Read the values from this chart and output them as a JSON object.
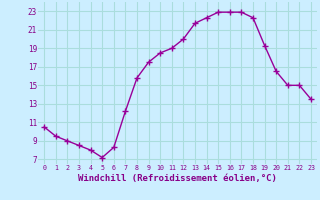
{
  "x": [
    0,
    1,
    2,
    3,
    4,
    5,
    6,
    7,
    8,
    9,
    10,
    11,
    12,
    13,
    14,
    15,
    16,
    17,
    18,
    19,
    20,
    21,
    22,
    23
  ],
  "y": [
    10.5,
    9.5,
    9.0,
    8.5,
    8.0,
    7.2,
    8.3,
    12.2,
    15.8,
    17.5,
    18.5,
    19.0,
    20.0,
    21.7,
    22.3,
    22.9,
    22.9,
    22.9,
    22.3,
    19.3,
    16.5,
    15.0,
    15.0,
    13.5
  ],
  "line_color": "#990099",
  "marker": "+",
  "markersize": 4,
  "linewidth": 1.0,
  "background_color": "#cceeff",
  "grid_color": "#aadddd",
  "xlabel": "Windchill (Refroidissement éolien,°C)",
  "xlabel_fontsize": 6.5,
  "tick_label_color": "#880088",
  "axis_label_color": "#880088",
  "xlim": [
    -0.5,
    23.5
  ],
  "ylim": [
    6.5,
    24
  ],
  "yticks": [
    7,
    9,
    11,
    13,
    15,
    17,
    19,
    21,
    23
  ],
  "xticks": [
    0,
    1,
    2,
    3,
    4,
    5,
    6,
    7,
    8,
    9,
    10,
    11,
    12,
    13,
    14,
    15,
    16,
    17,
    18,
    19,
    20,
    21,
    22,
    23
  ]
}
